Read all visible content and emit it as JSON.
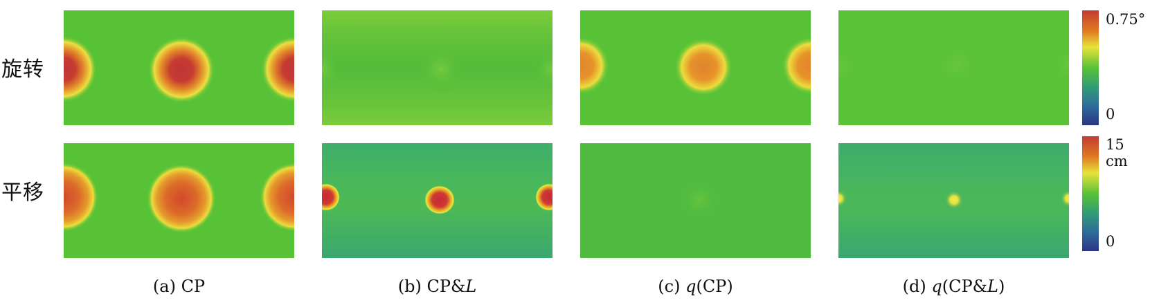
{
  "rows": [
    {
      "label": "旋转",
      "colorbar_max": "0.75°",
      "colorbar_min": "0"
    },
    {
      "label": "平移",
      "colorbar_max": "15 cm",
      "colorbar_min": "0"
    }
  ],
  "captions": [
    {
      "prefix": "(a) CP",
      "q": "",
      "mid": "",
      "italic": "",
      "suffix": ""
    },
    {
      "prefix": "(b) CP&",
      "q": "",
      "mid": "",
      "italic": "L",
      "suffix": ""
    },
    {
      "prefix": "(c) ",
      "q": "q",
      "mid": "(CP",
      "italic": "",
      "suffix": ")"
    },
    {
      "prefix": "(d) ",
      "q": "q",
      "mid": "(CP&",
      "italic": "L",
      "suffix": ")"
    }
  ],
  "colors": {
    "background_green": "#58c236",
    "teal": "#3eae6a",
    "hot_red": "#c23a32",
    "hot_orange": "#e07a22",
    "halo_yellow": "#e8e23a",
    "colorbar": [
      "#c23a32",
      "#e07a22",
      "#e8e23a",
      "#58c236",
      "#2f9a7a",
      "#2f6a9a",
      "#2a3583"
    ]
  }
}
